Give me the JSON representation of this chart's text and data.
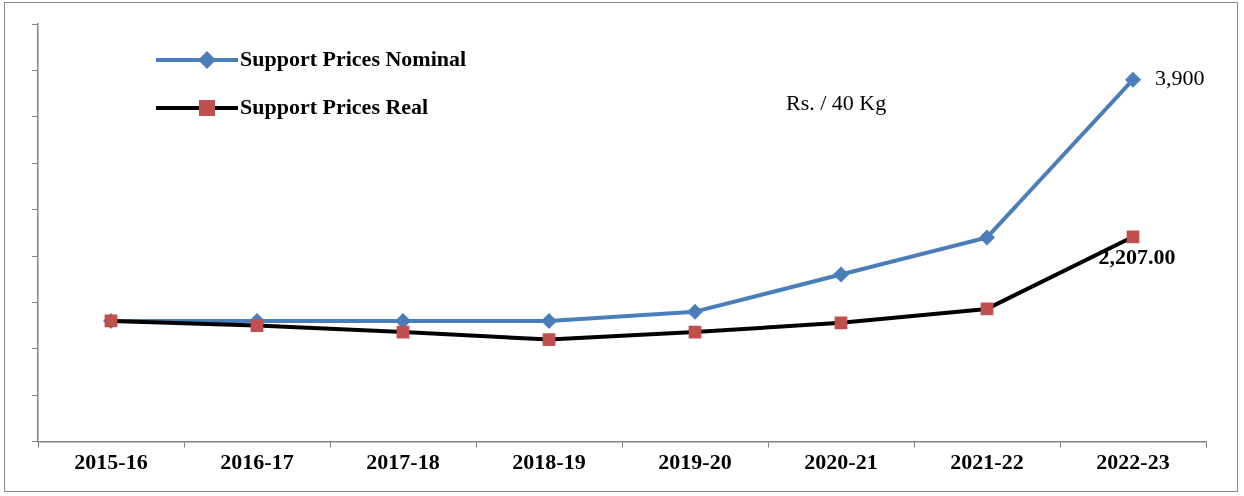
{
  "chart_data": {
    "type": "line",
    "categories": [
      "2015-16",
      "2016-17",
      "2017-18",
      "2018-19",
      "2019-20",
      "2020-21",
      "2021-22",
      "2022-23"
    ],
    "series": [
      {
        "name": "Support Prices Nominal",
        "color": "#4a7ebb",
        "marker": "diamond",
        "values": [
          1300,
          1300,
          1300,
          1300,
          1400,
          1800,
          2200,
          3900
        ],
        "value_labels": [
          null,
          null,
          null,
          null,
          null,
          null,
          null,
          "3,900"
        ]
      },
      {
        "name": "Support Prices Real",
        "color": "#000000",
        "marker": "square",
        "values": [
          1300,
          1250,
          1180,
          1100,
          1180,
          1280,
          1430,
          2207
        ],
        "value_labels": [
          null,
          null,
          null,
          null,
          null,
          null,
          null,
          "2,207.00"
        ]
      }
    ],
    "ylim": [
      0,
      4500
    ],
    "yticks": [
      {
        "value": 0,
        "label": null
      },
      {
        "value": 500,
        "label": null
      },
      {
        "value": 1000,
        "label": null
      },
      {
        "value": 1500,
        "label": null
      },
      {
        "value": 2000,
        "label": null
      },
      {
        "value": 2500,
        "label": null
      },
      {
        "value": 3000,
        "label": null
      },
      {
        "value": 3500,
        "label": null
      },
      {
        "value": 4000,
        "label": null
      },
      {
        "value": 4500,
        "label": null
      }
    ],
    "annotations": [
      "Rs. / 40 Kg"
    ],
    "legend": "top left",
    "grid": false,
    "line_style": "solid"
  }
}
